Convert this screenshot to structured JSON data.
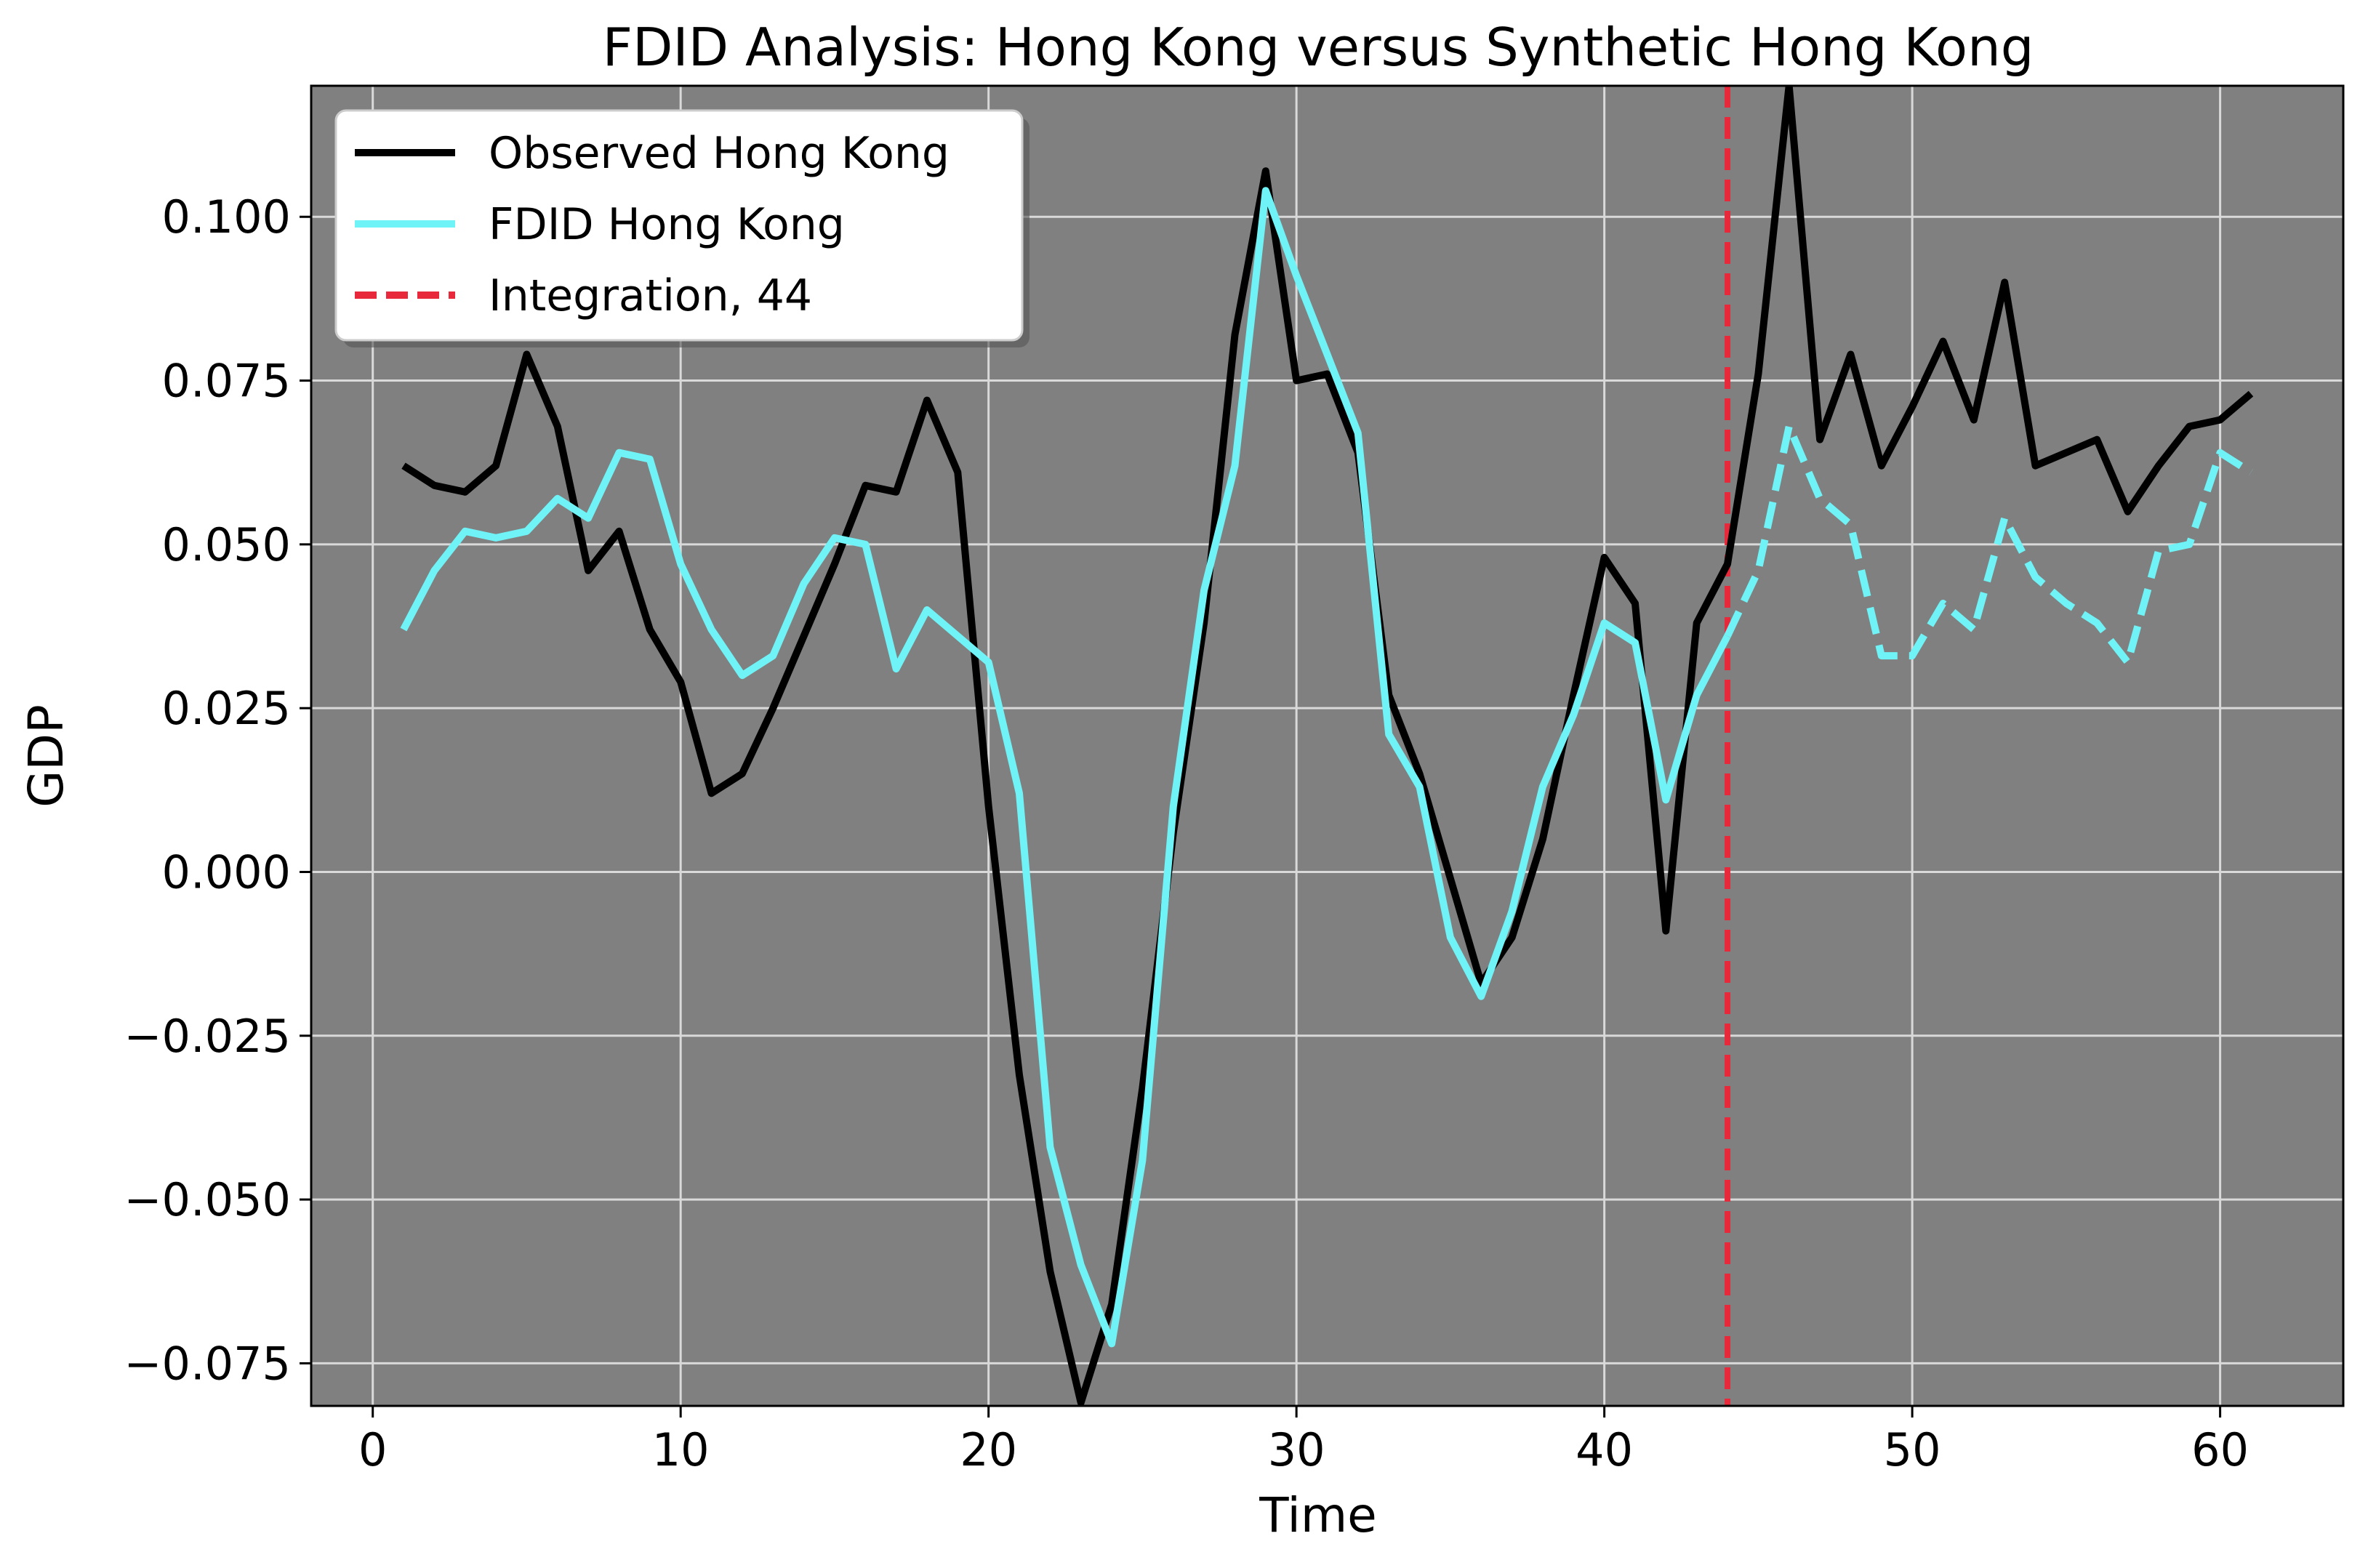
{
  "chart_data": {
    "type": "line",
    "title": "FDID Analysis: Hong Kong versus Synthetic Hong Kong",
    "xlabel": "Time",
    "ylabel": "GDP",
    "xlim": [
      -2,
      64
    ],
    "ylim": [
      -0.0815,
      0.12
    ],
    "x_ticks": [
      0,
      10,
      20,
      30,
      40,
      50,
      60
    ],
    "x_tick_labels": [
      "0",
      "10",
      "20",
      "30",
      "40",
      "50",
      "60"
    ],
    "y_ticks": [
      -0.075,
      -0.05,
      -0.025,
      0.0,
      0.025,
      0.05,
      0.075,
      0.1
    ],
    "y_tick_labels": [
      "−0.075",
      "−0.050",
      "−0.025",
      "0.000",
      "0.025",
      "0.050",
      "0.075",
      "0.100"
    ],
    "grid": true,
    "background": "#808080",
    "legend_position": "top-left",
    "series": [
      {
        "name": "Observed Hong Kong",
        "color": "#000000",
        "style": "solid",
        "x": [
          1,
          2,
          3,
          4,
          5,
          6,
          7,
          8,
          9,
          10,
          11,
          12,
          13,
          14,
          15,
          16,
          17,
          18,
          19,
          20,
          21,
          22,
          23,
          24,
          25,
          26,
          27,
          28,
          29,
          30,
          31,
          32,
          33,
          34,
          35,
          36,
          37,
          38,
          39,
          40,
          41,
          42,
          43,
          44,
          45,
          46,
          47,
          48,
          49,
          50,
          51,
          52,
          53,
          54,
          55,
          56,
          57,
          58,
          59,
          60,
          61
        ],
        "values": [
          0.062,
          0.059,
          0.058,
          0.062,
          0.079,
          0.068,
          0.046,
          0.052,
          0.037,
          0.029,
          0.012,
          0.015,
          0.025,
          0.036,
          0.047,
          0.059,
          0.058,
          0.072,
          0.061,
          0.01,
          -0.031,
          -0.061,
          -0.081,
          -0.066,
          -0.033,
          0.006,
          0.038,
          0.082,
          0.107,
          0.075,
          0.076,
          0.064,
          0.027,
          0.015,
          -0.001,
          -0.017,
          -0.01,
          0.005,
          0.027,
          0.048,
          0.041,
          -0.009,
          0.038,
          0.047,
          0.076,
          0.12,
          0.066,
          0.079,
          0.062,
          0.071,
          0.081,
          0.069,
          0.09,
          0.062,
          0.064,
          0.066,
          0.055,
          0.062,
          0.068,
          0.069,
          0.073
        ]
      },
      {
        "name": "FDID Hong Kong",
        "color": "#6ff3f6",
        "style": "solid-then-dashed",
        "dash_from_x": 44,
        "x": [
          1,
          2,
          3,
          4,
          5,
          6,
          7,
          8,
          9,
          10,
          11,
          12,
          13,
          14,
          15,
          16,
          17,
          18,
          19,
          20,
          21,
          22,
          23,
          24,
          25,
          26,
          27,
          28,
          29,
          30,
          31,
          32,
          33,
          34,
          35,
          36,
          37,
          38,
          39,
          40,
          41,
          42,
          43,
          44,
          45,
          46,
          47,
          48,
          49,
          50,
          51,
          52,
          53,
          54,
          55,
          56,
          57,
          58,
          59,
          60,
          61
        ],
        "values": [
          0.037,
          0.046,
          0.052,
          0.051,
          0.052,
          0.057,
          0.054,
          0.064,
          0.063,
          0.047,
          0.037,
          0.03,
          0.033,
          0.044,
          0.051,
          0.05,
          0.031,
          0.04,
          0.036,
          0.032,
          0.012,
          -0.042,
          -0.06,
          -0.072,
          -0.044,
          0.01,
          0.043,
          0.062,
          0.104,
          0.091,
          0.079,
          0.067,
          0.021,
          0.013,
          -0.01,
          -0.019,
          -0.006,
          0.013,
          0.024,
          0.038,
          0.035,
          0.011,
          0.027,
          0.036,
          0.046,
          0.068,
          0.057,
          0.053,
          0.033,
          0.033,
          0.041,
          0.037,
          0.054,
          0.045,
          0.041,
          0.038,
          0.032,
          0.049,
          0.05,
          0.064,
          0.061
        ]
      }
    ],
    "vlines": [
      {
        "name": "Integration, 44",
        "x": 44,
        "color": "#e8293b",
        "style": "dashed"
      }
    ]
  }
}
